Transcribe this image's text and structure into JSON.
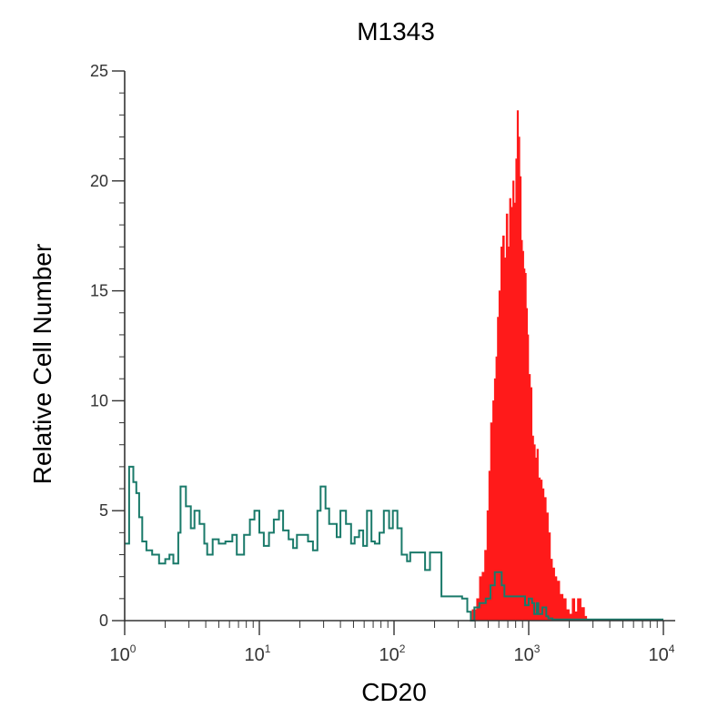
{
  "chart_data": {
    "type": "histogram",
    "title": "M1343",
    "xlabel": "CD20",
    "ylabel": "Relative Cell Number",
    "x_scale": "log",
    "xlim": [
      1,
      10000
    ],
    "ylim": [
      0,
      25
    ],
    "x_ticks": [
      {
        "base": "10",
        "exp": "0",
        "value": 1
      },
      {
        "base": "10",
        "exp": "1",
        "value": 10
      },
      {
        "base": "10",
        "exp": "2",
        "value": 100
      },
      {
        "base": "10",
        "exp": "3",
        "value": 1000
      },
      {
        "base": "10",
        "exp": "4",
        "value": 10000
      }
    ],
    "y_ticks": [
      "0",
      "5",
      "10",
      "15",
      "20",
      "25"
    ],
    "colors": {
      "stained": "#ff1a1a",
      "control": "#1a7a6a"
    },
    "series": [
      {
        "kind": "filled",
        "color": "#ff1a1a",
        "points": [
          [
            300,
            0
          ],
          [
            380,
            0.5
          ],
          [
            410,
            1.0
          ],
          [
            430,
            2.0
          ],
          [
            450,
            2.2
          ],
          [
            470,
            3.2
          ],
          [
            490,
            5.0
          ],
          [
            505,
            6.8
          ],
          [
            520,
            9.0
          ],
          [
            540,
            10.0
          ],
          [
            555,
            11.0
          ],
          [
            570,
            12.0
          ],
          [
            585,
            13.8
          ],
          [
            600,
            15.0
          ],
          [
            620,
            17.0
          ],
          [
            640,
            17.5
          ],
          [
            660,
            16.5
          ],
          [
            680,
            18.5
          ],
          [
            700,
            17.0
          ],
          [
            720,
            19.2
          ],
          [
            740,
            18.8
          ],
          [
            760,
            20.0
          ],
          [
            780,
            19.0
          ],
          [
            800,
            21.0
          ],
          [
            820,
            23.2
          ],
          [
            840,
            22.0
          ],
          [
            860,
            20.2
          ],
          [
            880,
            17.3
          ],
          [
            900,
            16.8
          ],
          [
            920,
            16.0
          ],
          [
            940,
            15.8
          ],
          [
            960,
            14.2
          ],
          [
            980,
            13.0
          ],
          [
            1000,
            11.2
          ],
          [
            1030,
            10.6
          ],
          [
            1060,
            8.4
          ],
          [
            1090,
            8.0
          ],
          [
            1120,
            7.4
          ],
          [
            1150,
            7.8
          ],
          [
            1180,
            6.5
          ],
          [
            1220,
            6.4
          ],
          [
            1260,
            6.0
          ],
          [
            1300,
            5.6
          ],
          [
            1350,
            4.9
          ],
          [
            1400,
            4.0
          ],
          [
            1450,
            2.8
          ],
          [
            1500,
            2.4
          ],
          [
            1560,
            2.0
          ],
          [
            1620,
            1.8
          ],
          [
            1700,
            1.2
          ],
          [
            1800,
            1.0
          ],
          [
            1900,
            0.5
          ],
          [
            2000,
            0.3
          ],
          [
            2100,
            1.0
          ],
          [
            2200,
            0.4
          ],
          [
            2300,
            1.0
          ],
          [
            2450,
            0.6
          ],
          [
            2600,
            0.2
          ],
          [
            2700,
            0
          ]
        ]
      },
      {
        "kind": "step",
        "color": "#1a7a6a",
        "points": [
          [
            1.0,
            3.5
          ],
          [
            1.08,
            7.0
          ],
          [
            1.16,
            6.3
          ],
          [
            1.22,
            5.8
          ],
          [
            1.28,
            4.7
          ],
          [
            1.35,
            3.6
          ],
          [
            1.45,
            3.2
          ],
          [
            1.6,
            3.0
          ],
          [
            1.7,
            3.0
          ],
          [
            1.8,
            2.6
          ],
          [
            2.0,
            2.8
          ],
          [
            2.15,
            3.0
          ],
          [
            2.3,
            2.6
          ],
          [
            2.5,
            4.0
          ],
          [
            2.6,
            6.1
          ],
          [
            2.85,
            5.2
          ],
          [
            3.1,
            4.2
          ],
          [
            3.3,
            5.0
          ],
          [
            3.6,
            4.4
          ],
          [
            3.9,
            3.5
          ],
          [
            4.1,
            3.0
          ],
          [
            4.5,
            3.7
          ],
          [
            5.0,
            3.5
          ],
          [
            5.6,
            3.6
          ],
          [
            6.3,
            3.9
          ],
          [
            6.8,
            3.0
          ],
          [
            7.2,
            3.0
          ],
          [
            7.7,
            3.9
          ],
          [
            8.5,
            4.6
          ],
          [
            9.2,
            5.0
          ],
          [
            10.0,
            4.0
          ],
          [
            10.8,
            3.4
          ],
          [
            11.8,
            4.0
          ],
          [
            12.8,
            4.6
          ],
          [
            14.0,
            5.0
          ],
          [
            15.0,
            4.1
          ],
          [
            16.5,
            3.7
          ],
          [
            17.8,
            3.3
          ],
          [
            19.0,
            3.9
          ],
          [
            21.0,
            3.9
          ],
          [
            23.0,
            3.6
          ],
          [
            25.0,
            3.2
          ],
          [
            27.0,
            5.0
          ],
          [
            28.5,
            6.1
          ],
          [
            31.0,
            5.1
          ],
          [
            33.0,
            4.4
          ],
          [
            35.0,
            4.4
          ],
          [
            37.5,
            3.8
          ],
          [
            40.0,
            5.0
          ],
          [
            44.0,
            4.4
          ],
          [
            48.0,
            3.5
          ],
          [
            51.0,
            3.8
          ],
          [
            55.0,
            4.1
          ],
          [
            59.0,
            3.4
          ],
          [
            63.0,
            5.0
          ],
          [
            68.0,
            3.6
          ],
          [
            72.0,
            3.5
          ],
          [
            78.0,
            4.0
          ],
          [
            84.0,
            5.0
          ],
          [
            92.0,
            4.2
          ],
          [
            98.0,
            5.0
          ],
          [
            106.0,
            4.2
          ],
          [
            114.0,
            3.0
          ],
          [
            125.0,
            2.7
          ],
          [
            132.0,
            3.1
          ],
          [
            170.0,
            2.3
          ],
          [
            185.0,
            3.1
          ],
          [
            225.0,
            1.1
          ],
          [
            320.0,
            1.0
          ],
          [
            350.0,
            0.4
          ],
          [
            372.0,
            0.0
          ],
          [
            395.0,
            0.6
          ],
          [
            430.0,
            0.8
          ],
          [
            480.0,
            1.0
          ],
          [
            520.0,
            1.6
          ],
          [
            560.0,
            2.2
          ],
          [
            630.0,
            1.6
          ],
          [
            660.0,
            1.1
          ],
          [
            760.0,
            1.1
          ],
          [
            940.0,
            0.7
          ],
          [
            1000.0,
            1.0
          ],
          [
            1060.0,
            0.8
          ],
          [
            1100.0,
            0.3
          ],
          [
            1150.0,
            0.8
          ],
          [
            1180.0,
            0.3
          ],
          [
            1260.0,
            0.6
          ],
          [
            1350.0,
            0.2
          ],
          [
            1400.0,
            0.1
          ],
          [
            1500.0,
            0.05
          ],
          [
            10000.0,
            0.05
          ]
        ]
      }
    ]
  }
}
